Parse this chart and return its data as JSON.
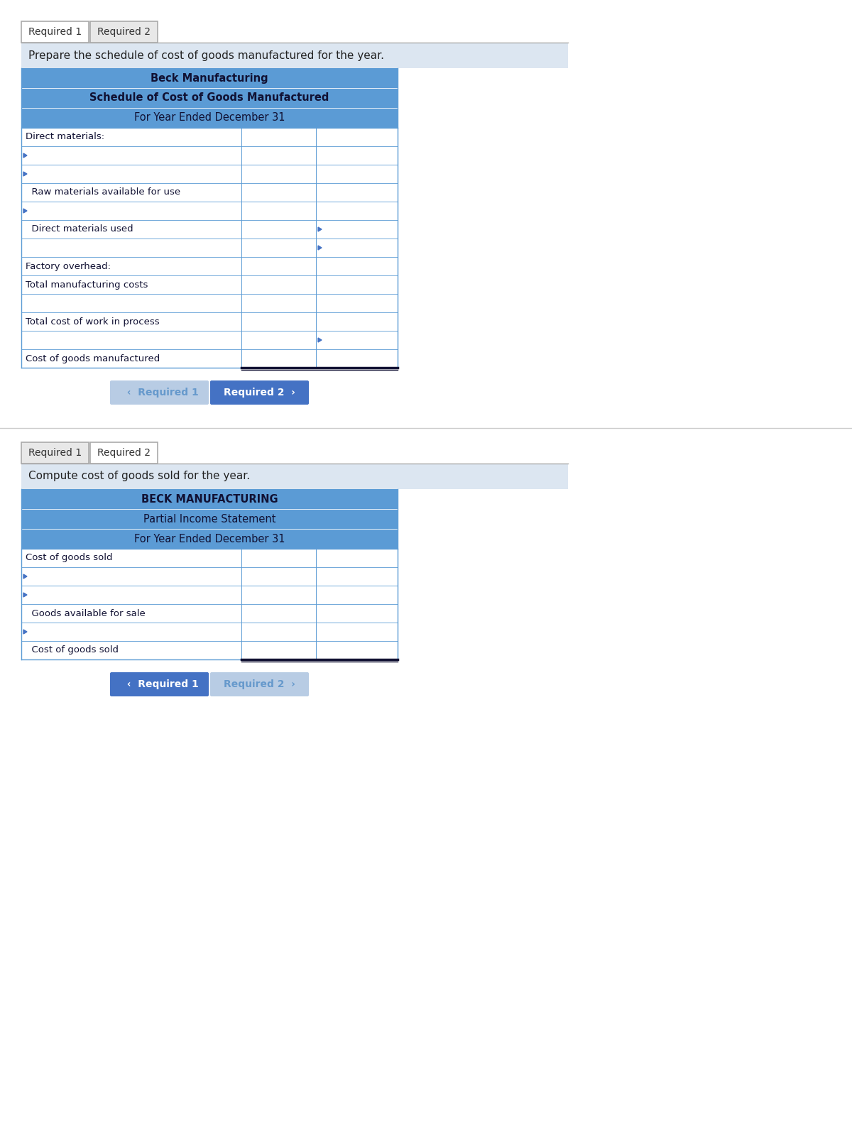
{
  "bg_color": "#ffffff",
  "tab_bg": "#e8e8e8",
  "tab_active_bg": "#ffffff",
  "tab_border": "#aaaaaa",
  "header_blue": "#5b9bd5",
  "instruction_bg": "#dce6f1",
  "table_border": "#5b9bd5",
  "row_bg_white": "#ffffff",
  "input_indicator": "#4472c4",
  "nav_btn_active": "#4472c4",
  "nav_btn_inactive": "#b8cce4",
  "nav_btn_text_active": "#ffffff",
  "nav_btn_text_inactive": "#6699cc",
  "divider_color": "#cccccc",
  "section1": {
    "tabs": [
      "Required 1",
      "Required 2"
    ],
    "active_tab": 0,
    "instruction": "Prepare the schedule of cost of goods manufactured for the year.",
    "table_title1": "Beck Manufacturing",
    "table_title2": "Schedule of Cost of Goods Manufactured",
    "table_title3": "For Year Ended December 31",
    "title1_bold": true,
    "title2_bold": true,
    "title3_bold": false,
    "rows": [
      {
        "label": "Direct materials:",
        "indent": 0,
        "col1_arrow": false,
        "col2_arrow": false,
        "input_row": false,
        "last_row": false
      },
      {
        "label": "",
        "indent": 1,
        "col1_arrow": true,
        "col2_arrow": false,
        "input_row": true,
        "last_row": false
      },
      {
        "label": "",
        "indent": 1,
        "col1_arrow": true,
        "col2_arrow": false,
        "input_row": true,
        "last_row": false
      },
      {
        "label": "  Raw materials available for use",
        "indent": 0,
        "col1_arrow": false,
        "col2_arrow": false,
        "input_row": false,
        "last_row": false
      },
      {
        "label": "",
        "indent": 1,
        "col1_arrow": true,
        "col2_arrow": false,
        "input_row": true,
        "last_row": false
      },
      {
        "label": "  Direct materials used",
        "indent": 0,
        "col1_arrow": false,
        "col2_arrow": true,
        "input_row": false,
        "last_row": false
      },
      {
        "label": "",
        "indent": 0,
        "col1_arrow": false,
        "col2_arrow": true,
        "input_row": true,
        "last_row": false
      },
      {
        "label": "Factory overhead:",
        "indent": 0,
        "col1_arrow": false,
        "col2_arrow": false,
        "input_row": false,
        "last_row": false
      },
      {
        "label": "Total manufacturing costs",
        "indent": 0,
        "col1_arrow": false,
        "col2_arrow": false,
        "input_row": false,
        "last_row": false
      },
      {
        "label": "",
        "indent": 0,
        "col1_arrow": false,
        "col2_arrow": false,
        "input_row": true,
        "last_row": false
      },
      {
        "label": "Total cost of work in process",
        "indent": 0,
        "col1_arrow": false,
        "col2_arrow": false,
        "input_row": false,
        "last_row": false
      },
      {
        "label": "",
        "indent": 0,
        "col1_arrow": false,
        "col2_arrow": true,
        "input_row": true,
        "last_row": false
      },
      {
        "label": "Cost of goods manufactured",
        "indent": 0,
        "col1_arrow": false,
        "col2_arrow": false,
        "input_row": false,
        "last_row": true
      }
    ],
    "nav_left": "  ‹  Required 1",
    "nav_right": "Required 2  ›",
    "nav_left_active": false,
    "nav_right_active": true
  },
  "section2": {
    "tabs": [
      "Required 1",
      "Required 2"
    ],
    "active_tab": 1,
    "instruction": "Compute cost of goods sold for the year.",
    "table_title1": "BECK MANUFACTURING",
    "table_title2": "Partial Income Statement",
    "table_title3": "For Year Ended December 31",
    "title1_bold": true,
    "title2_bold": false,
    "title3_bold": false,
    "rows": [
      {
        "label": "Cost of goods sold",
        "indent": 0,
        "col1_arrow": false,
        "col2_arrow": false,
        "input_row": false,
        "last_row": false
      },
      {
        "label": "",
        "indent": 1,
        "col1_arrow": true,
        "col2_arrow": false,
        "input_row": true,
        "last_row": false
      },
      {
        "label": "",
        "indent": 1,
        "col1_arrow": true,
        "col2_arrow": false,
        "input_row": true,
        "last_row": false
      },
      {
        "label": "  Goods available for sale",
        "indent": 0,
        "col1_arrow": false,
        "col2_arrow": false,
        "input_row": false,
        "last_row": false
      },
      {
        "label": "",
        "indent": 1,
        "col1_arrow": true,
        "col2_arrow": false,
        "input_row": true,
        "last_row": false
      },
      {
        "label": "  Cost of goods sold",
        "indent": 0,
        "col1_arrow": false,
        "col2_arrow": false,
        "input_row": false,
        "last_row": true
      }
    ],
    "nav_left": "  ‹  Required 1",
    "nav_right": "Required 2  ›",
    "nav_left_active": true,
    "nav_right_active": false
  }
}
